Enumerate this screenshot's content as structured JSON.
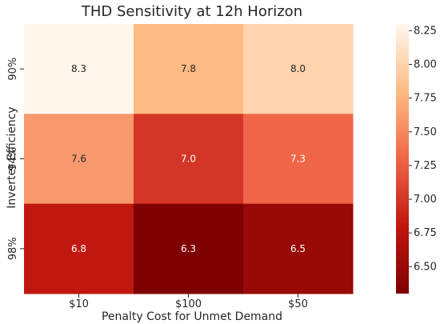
{
  "chart_data": {
    "type": "heatmap",
    "title": "THD Sensitivity at 12h Horizon",
    "xlabel": "Penalty Cost for Unmet Demand",
    "ylabel": "Inverter Efficiency",
    "x_categories": [
      "$10",
      "$100",
      "$50"
    ],
    "y_categories": [
      "90%",
      "94%",
      "98%"
    ],
    "values": [
      [
        8.3,
        7.8,
        8.0
      ],
      [
        7.6,
        7.0,
        7.3
      ],
      [
        6.8,
        6.3,
        6.5
      ]
    ],
    "value_labels": [
      [
        "8.3",
        "7.8",
        "8.0"
      ],
      [
        "7.6",
        "7.0",
        "7.3"
      ],
      [
        "6.8",
        "6.3",
        "6.5"
      ]
    ],
    "colormap": "OrRd",
    "colorbar": {
      "range": [
        6.3,
        8.3
      ],
      "ticks": [
        6.5,
        6.75,
        7.0,
        7.25,
        7.5,
        7.75,
        8.0,
        8.25
      ],
      "tick_labels": [
        "6.50",
        "6.75",
        "7.00",
        "7.25",
        "7.50",
        "7.75",
        "8.00",
        "8.25"
      ]
    }
  }
}
